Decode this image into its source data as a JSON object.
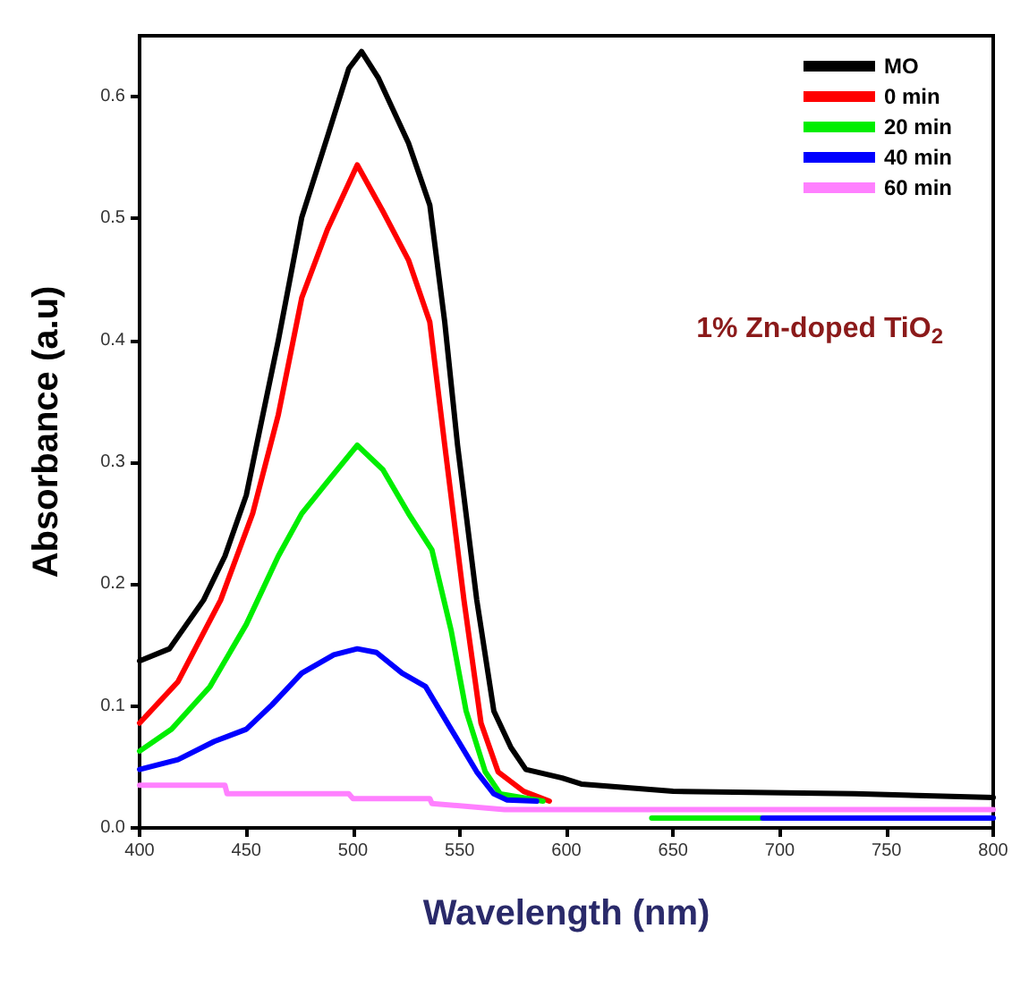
{
  "chart_data": {
    "type": "line",
    "xlabel": "Wavelength (nm)",
    "ylabel": "Absorbance (a.u)",
    "xlim": [
      400,
      800
    ],
    "ylim": [
      0,
      0.65
    ],
    "xticks": [
      400,
      450,
      500,
      550,
      600,
      650,
      700,
      750,
      800
    ],
    "yticks": [
      {
        "value": 0,
        "label": "0.0"
      },
      0.1,
      0.2,
      0.3,
      0.4,
      0.5,
      0.6
    ],
    "grid": false,
    "legend": "top right",
    "marker": "none",
    "line_style": "solid",
    "annotations": [
      "1% Zn-doped TiO$_{2}$"
    ],
    "series": [
      {
        "name": "MO",
        "color": "#000000",
        "x": [
          400,
          414,
          430,
          440,
          450,
          456,
          465,
          476,
          488,
          498,
          504,
          512,
          526,
          536,
          543,
          549,
          558,
          566,
          574,
          581,
          598,
          607,
          650,
          735,
          800
        ],
        "values": [
          0.137,
          0.147,
          0.187,
          0.223,
          0.273,
          0.324,
          0.4,
          0.501,
          0.567,
          0.623,
          0.637,
          0.615,
          0.562,
          0.511,
          0.415,
          0.314,
          0.187,
          0.096,
          0.066,
          0.048,
          0.041,
          0.036,
          0.03,
          0.028,
          0.025
        ]
      },
      {
        "name": "0 min",
        "color": "#ff0000",
        "x": [
          400,
          418,
          438,
          453,
          465,
          476,
          488,
          502,
          514,
          526,
          536,
          543,
          552,
          560,
          568,
          580,
          592
        ],
        "values": [
          0.086,
          0.12,
          0.187,
          0.258,
          0.339,
          0.435,
          0.491,
          0.544,
          0.506,
          0.466,
          0.415,
          0.314,
          0.187,
          0.086,
          0.046,
          0.03,
          0.022
        ]
      },
      {
        "name": "20 min",
        "color": "#00ee00",
        "x": [
          400,
          415,
          433,
          450,
          465,
          476,
          488,
          502,
          514,
          526,
          537,
          546,
          553,
          562,
          569,
          589,
          600,
          640,
          692
        ],
        "values": [
          0.063,
          0.081,
          0.116,
          0.167,
          0.223,
          0.258,
          0.284,
          0.314,
          0.294,
          0.258,
          0.228,
          0.162,
          0.096,
          0.046,
          0.028,
          0.022,
          null,
          0.008,
          0.008
        ]
      },
      {
        "name": "40 min",
        "color": "#0000ff",
        "x": [
          400,
          418,
          435,
          450,
          462,
          476,
          491,
          502,
          511,
          523,
          534,
          546,
          558,
          566,
          572,
          586,
          600,
          692,
          800
        ],
        "values": [
          0.048,
          0.056,
          0.071,
          0.081,
          0.101,
          0.127,
          0.142,
          0.147,
          0.144,
          0.127,
          0.116,
          0.081,
          0.046,
          0.028,
          0.023,
          0.022,
          null,
          0.008,
          0.008
        ]
      },
      {
        "name": "60 min",
        "color": "#ff80ff",
        "x": [
          400,
          440,
          441,
          498,
          500,
          536,
          537,
          571,
          800
        ],
        "values": [
          0.035,
          0.035,
          0.028,
          0.028,
          0.024,
          0.024,
          0.02,
          0.015,
          0.015
        ]
      }
    ]
  }
}
